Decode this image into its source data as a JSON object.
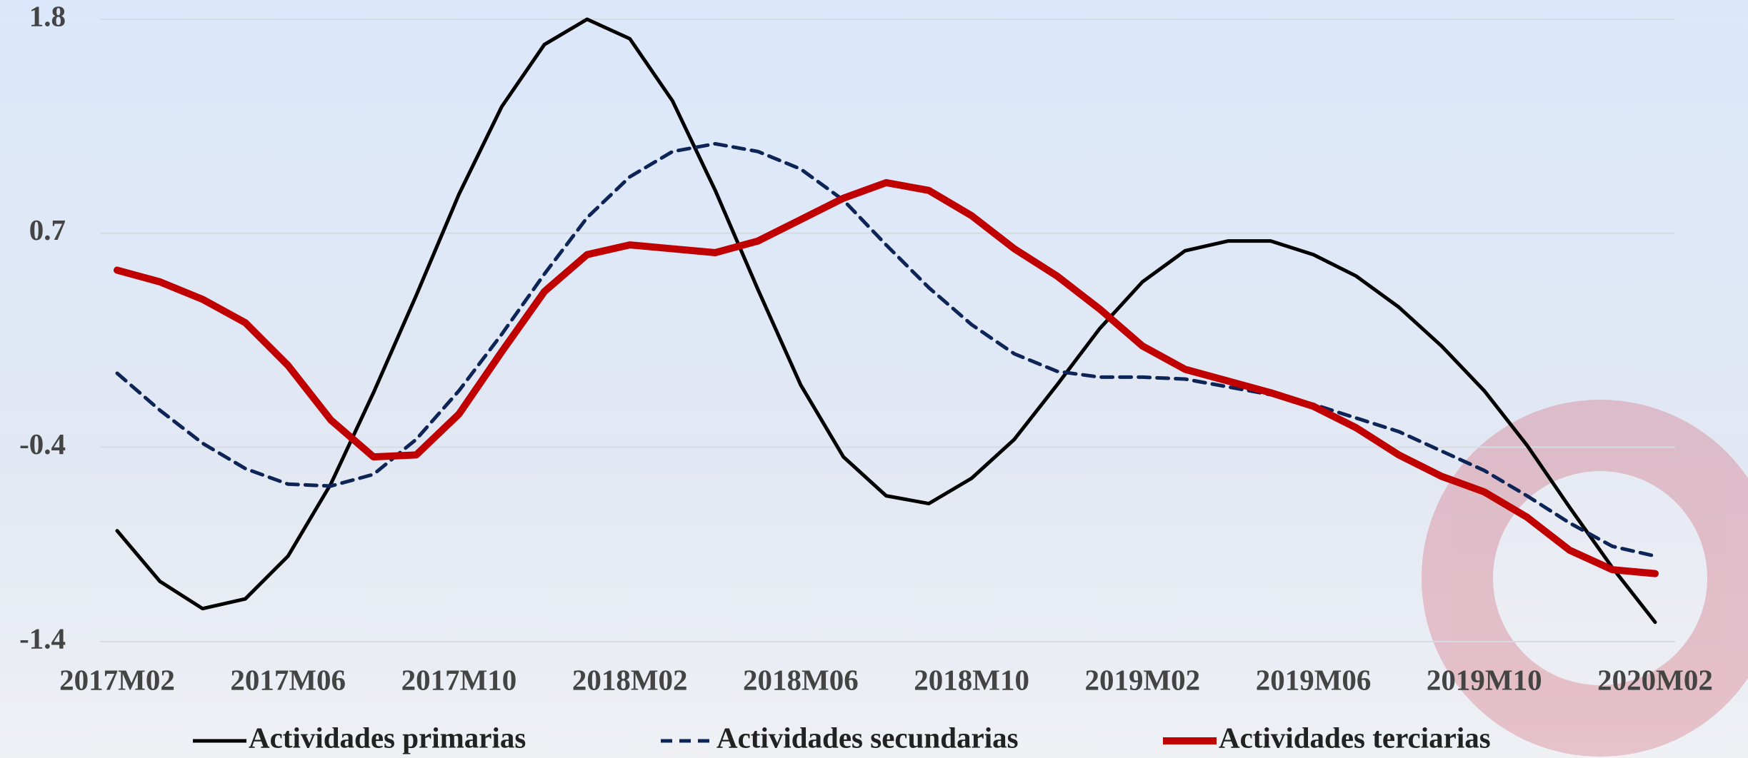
{
  "chart_data": {
    "type": "line",
    "categories": [
      "2017M02",
      null,
      null,
      null,
      "2017M06",
      null,
      null,
      null,
      "2017M10",
      null,
      null,
      null,
      "2018M02",
      null,
      null,
      null,
      "2018M06",
      null,
      null,
      null,
      "2018M10",
      null,
      null,
      null,
      "2019M02",
      null,
      null,
      null,
      "2019M06",
      null,
      null,
      null,
      "2019M10",
      null,
      null,
      null,
      "2020M02"
    ],
    "series": [
      {
        "name": "Actividades primarias",
        "color": "#000000",
        "style": "solid",
        "values": [
          -0.83,
          -1.09,
          -1.23,
          -1.18,
          -0.96,
          -0.59,
          -0.12,
          0.38,
          0.9,
          1.35,
          1.67,
          1.8,
          1.7,
          1.38,
          0.92,
          0.41,
          -0.08,
          -0.45,
          -0.65,
          -0.69,
          -0.56,
          -0.36,
          -0.08,
          0.21,
          0.45,
          0.61,
          0.66,
          0.66,
          0.59,
          0.48,
          0.32,
          0.12,
          -0.11,
          -0.39,
          -0.71,
          -1.02,
          -1.3
        ]
      },
      {
        "name": "Actividades secundarias",
        "color": "#0d2456",
        "style": "dashed",
        "values": [
          -0.02,
          -0.21,
          -0.38,
          -0.51,
          -0.59,
          -0.6,
          -0.54,
          -0.36,
          -0.11,
          0.18,
          0.49,
          0.78,
          0.99,
          1.12,
          1.16,
          1.12,
          1.03,
          0.87,
          0.64,
          0.42,
          0.23,
          0.08,
          -0.01,
          -0.04,
          -0.04,
          -0.05,
          -0.09,
          -0.13,
          -0.18,
          -0.25,
          -0.32,
          -0.42,
          -0.52,
          -0.65,
          -0.79,
          -0.91,
          -0.96
        ]
      },
      {
        "name": "Actividades terciarias",
        "color": "#c00000",
        "style": "thick",
        "values": [
          0.51,
          0.45,
          0.36,
          0.24,
          0.02,
          -0.26,
          -0.45,
          -0.44,
          -0.23,
          0.09,
          0.4,
          0.59,
          0.64,
          0.62,
          0.6,
          0.66,
          0.77,
          0.88,
          0.96,
          0.92,
          0.79,
          0.62,
          0.48,
          0.31,
          0.12,
          0.0,
          -0.06,
          -0.12,
          -0.19,
          -0.3,
          -0.44,
          -0.55,
          -0.63,
          -0.76,
          -0.93,
          -1.03,
          -1.05
        ]
      }
    ],
    "ylim": [
      -1.4,
      1.8
    ],
    "yticks": [
      1.8,
      0.7,
      -0.4,
      -1.4
    ],
    "grid": true,
    "legend": "bottom"
  }
}
